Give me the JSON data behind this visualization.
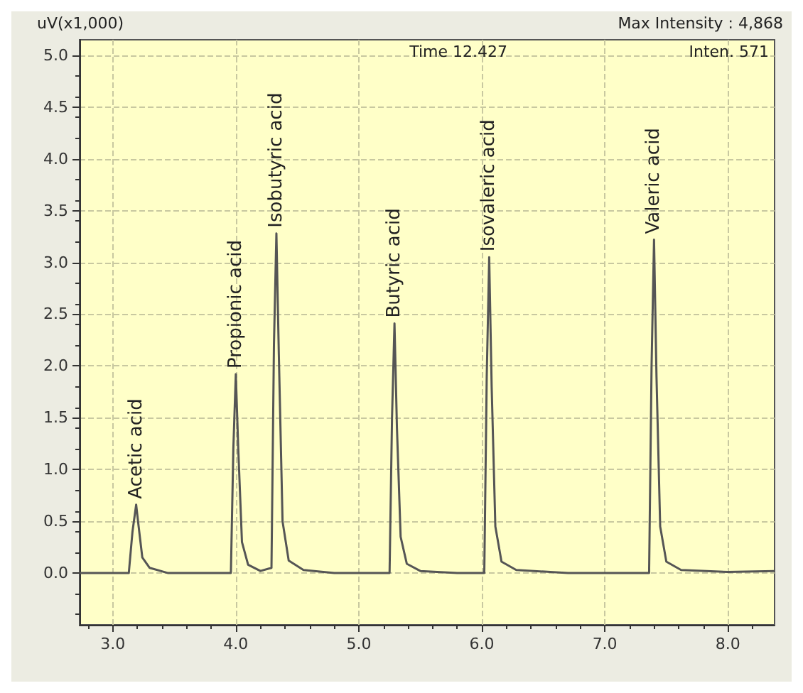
{
  "chart_data": {
    "type": "line",
    "ylabel": "uV(x1,000)",
    "x": [
      2.73,
      3.13,
      3.16,
      3.19,
      3.21,
      3.24,
      3.3,
      3.45,
      3.96,
      3.98,
      4.0,
      4.02,
      4.05,
      4.1,
      4.2,
      4.29,
      4.31,
      4.33,
      4.35,
      4.38,
      4.43,
      4.55,
      4.8,
      5.25,
      5.27,
      5.29,
      5.31,
      5.34,
      5.39,
      5.5,
      5.8,
      6.02,
      6.04,
      6.06,
      6.08,
      6.11,
      6.16,
      6.28,
      6.7,
      7.36,
      7.38,
      7.4,
      7.42,
      7.45,
      7.5,
      7.62,
      8.0,
      8.38
    ],
    "series": [
      {
        "color": "#555555",
        "values": [
          0,
          0,
          0.4,
          0.66,
          0.45,
          0.15,
          0.05,
          0,
          0,
          1.2,
          1.92,
          1.2,
          0.3,
          0.08,
          0.02,
          0.05,
          2.2,
          3.28,
          2.1,
          0.5,
          0.12,
          0.03,
          0,
          0,
          1.5,
          2.41,
          1.4,
          0.35,
          0.09,
          0.02,
          0,
          0,
          1.9,
          3.05,
          1.8,
          0.45,
          0.11,
          0.03,
          0,
          0,
          2,
          3.22,
          1.9,
          0.45,
          0.11,
          0.03,
          0.01,
          0.02
        ]
      }
    ],
    "xlim": [
      2.73,
      8.38
    ],
    "xticks": [
      {
        "value": 3,
        "label": "3.0"
      },
      {
        "value": 4,
        "label": "4.0"
      },
      {
        "value": 5,
        "label": "5.0"
      },
      {
        "value": 6,
        "label": "6.0"
      },
      {
        "value": 7,
        "label": "7.0"
      },
      {
        "value": 8,
        "label": "8.0"
      }
    ],
    "ylim": [
      -0.5,
      5.15
    ],
    "yticks": [
      {
        "value": 0,
        "label": "0.0"
      },
      {
        "value": 0.5,
        "label": "0.5"
      },
      {
        "value": 1,
        "label": "1.0"
      },
      {
        "value": 1.5,
        "label": "1.5"
      },
      {
        "value": 2,
        "label": "2.0"
      },
      {
        "value": 2.5,
        "label": "2.5"
      },
      {
        "value": 3,
        "label": "3.0"
      },
      {
        "value": 3.5,
        "label": "3.5"
      },
      {
        "value": 4,
        "label": "4.0"
      },
      {
        "value": 4.5,
        "label": "4.5"
      },
      {
        "value": 5,
        "label": "5.0"
      }
    ],
    "grid": true,
    "marker": "none",
    "line_style": "solid",
    "annotations": [
      "Max Intensity : 4,868",
      "Time 12.427",
      "Inten. 571",
      {
        "text": "Acetic acid",
        "x": 3.19,
        "y": 0.66
      },
      {
        "text": "Propionic acid",
        "x": 4.0,
        "y": 1.92
      },
      {
        "text": "Isobutyric acid",
        "x": 4.33,
        "y": 3.28
      },
      {
        "text": "Butyric acid",
        "x": 5.29,
        "y": 2.41
      },
      {
        "text": "Isovaleric acid",
        "x": 6.06,
        "y": 3.05
      },
      {
        "text": "Valeric acid",
        "x": 7.4,
        "y": 3.22
      }
    ]
  }
}
